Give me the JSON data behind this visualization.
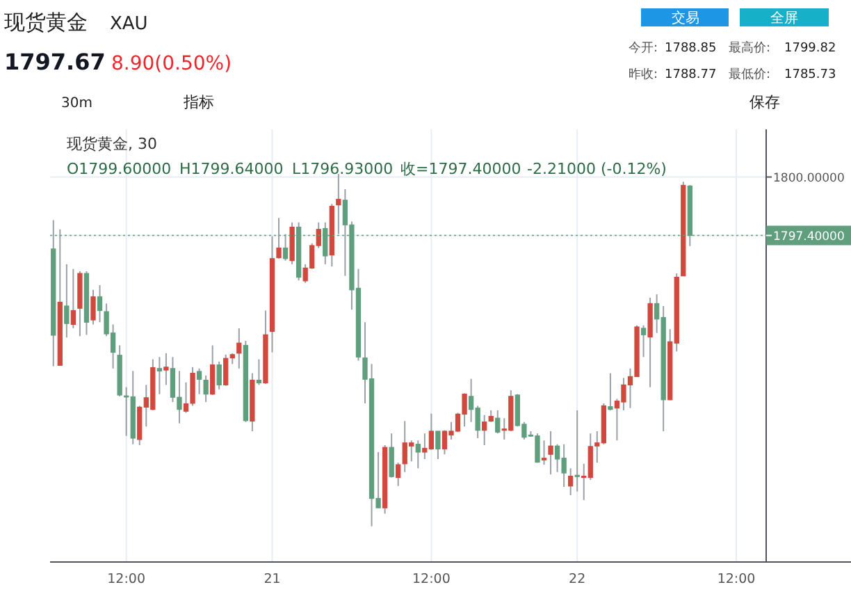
{
  "chart_data": {
    "type": "candlestick",
    "title": "现货黄金",
    "subtitle": "XAU",
    "categories": [
      null,
      null,
      null,
      null,
      null,
      null,
      null,
      null,
      null,
      null,
      null,
      "12:00",
      null,
      null,
      null,
      null,
      null,
      null,
      null,
      null,
      null,
      null,
      null,
      null,
      null,
      null,
      null,
      null,
      null,
      null,
      null,
      null,
      null,
      "21",
      null,
      null,
      null,
      null,
      null,
      null,
      null,
      null,
      null,
      null,
      null,
      null,
      null,
      null,
      null,
      null,
      null,
      null,
      null,
      null,
      null,
      null,
      null,
      "12:00",
      null,
      null,
      null,
      null,
      null,
      null,
      null,
      null,
      null,
      null,
      null,
      null,
      null,
      null,
      null,
      null,
      null,
      null,
      null,
      null,
      null,
      "22",
      null,
      null,
      null,
      null,
      null,
      null,
      null,
      null,
      null,
      null,
      null,
      null,
      null,
      null,
      null,
      null,
      null,
      null,
      null,
      null,
      null,
      null,
      null,
      "12:00",
      null,
      null,
      null,
      null
    ],
    "ohlc": [
      [
        1796.8,
        1798.08,
        1791.58,
        1792.96
      ],
      [
        1791.62,
        1797.67,
        1791.62,
        1794.43
      ],
      [
        1794.26,
        1796.12,
        1792.86,
        1793.48
      ],
      [
        1793.44,
        1795.91,
        1793.27,
        1794.06
      ],
      [
        1794.16,
        1795.81,
        1792.92,
        1795.71
      ],
      [
        1795.71,
        1795.81,
        1792.98,
        1793.54
      ],
      [
        1793.64,
        1794.98,
        1793.44,
        1794.67
      ],
      [
        1794.67,
        1795.19,
        1793.54,
        1794.06
      ],
      [
        1794.01,
        1794.37,
        1792.92,
        1793.02
      ],
      [
        1793.06,
        1793.44,
        1791.48,
        1792.2
      ],
      [
        1792.07,
        1792.51,
        1790.24,
        1790.3
      ],
      [
        1790.26,
        1790.65,
        1788.48,
        1790.22
      ],
      [
        1790.22,
        1791.37,
        1788.11,
        1788.38
      ],
      [
        1788.32,
        1789.82,
        1788.07,
        1789.76
      ],
      [
        1789.76,
        1790.75,
        1788.9,
        1790.18
      ],
      [
        1789.66,
        1791.89,
        1789.62,
        1791.52
      ],
      [
        1791.48,
        1791.99,
        1790.34,
        1791.37
      ],
      [
        1791.41,
        1792.16,
        1790.75,
        1791.54
      ],
      [
        1791.48,
        1791.99,
        1789.99,
        1790.2
      ],
      [
        1790.2,
        1791.37,
        1789.04,
        1789.66
      ],
      [
        1789.58,
        1790.86,
        1789.51,
        1789.91
      ],
      [
        1789.93,
        1791.54,
        1789.82,
        1791.27
      ],
      [
        1791.35,
        1791.48,
        1790.34,
        1791.0
      ],
      [
        1790.96,
        1791.17,
        1789.99,
        1790.34
      ],
      [
        1790.34,
        1792.51,
        1790.3,
        1791.64
      ],
      [
        1791.64,
        1791.79,
        1790.55,
        1790.75
      ],
      [
        1790.75,
        1792.1,
        1790.71,
        1791.93
      ],
      [
        1791.95,
        1792.16,
        1791.68,
        1792.1
      ],
      [
        1792.16,
        1793.27,
        1791.48,
        1792.61
      ],
      [
        1792.51,
        1792.71,
        1789.1,
        1789.16
      ],
      [
        1789.14,
        1791.27,
        1788.69,
        1790.96
      ],
      [
        1790.96,
        1791.89,
        1790.75,
        1790.84
      ],
      [
        1790.84,
        1794.06,
        1790.79,
        1792.98
      ],
      [
        1793.13,
        1797.36,
        1792.2,
        1796.37
      ],
      [
        1796.41,
        1798.18,
        1796.37,
        1796.84
      ],
      [
        1796.84,
        1797.46,
        1796.28,
        1796.37
      ],
      [
        1796.28,
        1797.98,
        1796.12,
        1797.77
      ],
      [
        1797.77,
        1797.98,
        1795.4,
        1795.54
      ],
      [
        1795.38,
        1796.12,
        1795.29,
        1795.95
      ],
      [
        1795.95,
        1797.05,
        1795.91,
        1796.95
      ],
      [
        1796.95,
        1797.98,
        1796.84,
        1797.67
      ],
      [
        1797.71,
        1797.98,
        1796.12,
        1796.49
      ],
      [
        1796.53,
        1798.8,
        1796.02,
        1798.7
      ],
      [
        1798.76,
        1800.14,
        1797.46,
        1799.01
      ],
      [
        1798.97,
        1799.46,
        1795.6,
        1797.87
      ],
      [
        1797.87,
        1798.02,
        1794.1,
        1794.98
      ],
      [
        1795.05,
        1795.91,
        1791.83,
        1791.99
      ],
      [
        1791.95,
        1793.54,
        1789.93,
        1791.0
      ],
      [
        1791.02,
        1791.68,
        1784.46,
        1785.7
      ],
      [
        1785.7,
        1787.76,
        1785.28,
        1785.28
      ],
      [
        1785.28,
        1788.07,
        1785.02,
        1787.97
      ],
      [
        1787.97,
        1788.59,
        1786.63,
        1786.67
      ],
      [
        1786.63,
        1787.29,
        1786.25,
        1787.2
      ],
      [
        1787.24,
        1789.14,
        1786.87,
        1788.17
      ],
      [
        1788.03,
        1788.28,
        1787.35,
        1788.17
      ],
      [
        1788.11,
        1788.28,
        1787.04,
        1787.76
      ],
      [
        1787.76,
        1788.59,
        1787.45,
        1787.93
      ],
      [
        1787.9,
        1789.47,
        1787.86,
        1788.69
      ],
      [
        1788.69,
        1788.69,
        1787.45,
        1787.9
      ],
      [
        1787.9,
        1788.73,
        1787.66,
        1788.69
      ],
      [
        1788.52,
        1789.1,
        1788.32,
        1788.69
      ],
      [
        1788.69,
        1789.51,
        1788.65,
        1789.45
      ],
      [
        1789.45,
        1790.38,
        1788.9,
        1790.34
      ],
      [
        1790.24,
        1791.02,
        1789.1,
        1789.66
      ],
      [
        1789.72,
        1789.82,
        1788.38,
        1788.73
      ],
      [
        1788.73,
        1789.41,
        1788.07,
        1789.1
      ],
      [
        1789.14,
        1789.62,
        1789.1,
        1789.35
      ],
      [
        1789.27,
        1789.62,
        1788.59,
        1788.65
      ],
      [
        1788.73,
        1789.27,
        1788.32,
        1788.79
      ],
      [
        1788.73,
        1790.51,
        1788.69,
        1790.24
      ],
      [
        1790.3,
        1790.34,
        1788.9,
        1788.94
      ],
      [
        1789.0,
        1789.1,
        1788.32,
        1788.42
      ],
      [
        1788.52,
        1788.69,
        1788.44,
        1788.48
      ],
      [
        1788.48,
        1788.59,
        1787.29,
        1787.31
      ],
      [
        1787.41,
        1788.28,
        1787.2,
        1787.49
      ],
      [
        1787.66,
        1788.69,
        1786.77,
        1788.03
      ],
      [
        1788.03,
        1788.11,
        1786.87,
        1787.45
      ],
      [
        1787.49,
        1788.11,
        1786.21,
        1786.83
      ],
      [
        1786.25,
        1787.04,
        1785.84,
        1786.69
      ],
      [
        1786.73,
        1789.62,
        1786.01,
        1786.67
      ],
      [
        1786.63,
        1787.24,
        1785.63,
        1786.69
      ],
      [
        1786.63,
        1788.59,
        1786.52,
        1788.01
      ],
      [
        1788.03,
        1788.69,
        1787.29,
        1788.17
      ],
      [
        1788.17,
        1789.93,
        1788.11,
        1789.82
      ],
      [
        1789.78,
        1791.27,
        1789.62,
        1789.66
      ],
      [
        1789.72,
        1790.13,
        1788.28,
        1790.03
      ],
      [
        1789.99,
        1791.06,
        1789.62,
        1790.75
      ],
      [
        1790.75,
        1791.48,
        1789.72,
        1791.12
      ],
      [
        1791.12,
        1793.4,
        1791.12,
        1793.33
      ],
      [
        1793.27,
        1793.4,
        1791.99,
        1792.98
      ],
      [
        1792.88,
        1794.63,
        1790.65,
        1794.37
      ],
      [
        1794.37,
        1794.78,
        1793.06,
        1793.68
      ],
      [
        1793.75,
        1794.26,
        1788.69,
        1790.09
      ],
      [
        1790.09,
        1793.23,
        1790.07,
        1792.67
      ],
      [
        1792.61,
        1795.71,
        1792.24,
        1795.54
      ],
      [
        1795.6,
        1799.79,
        1795.6,
        1799.63
      ],
      [
        1799.6,
        1799.64,
        1796.93,
        1797.4
      ],
      null,
      null,
      null,
      null,
      null,
      null,
      null,
      null,
      null,
      null,
      null
    ],
    "colors": [
      "#5f9f7d",
      "#d1493e",
      "#5f9f7d",
      "#d1493e",
      "#d1493e",
      "#5f9f7d",
      "#d1493e",
      "#5f9f7d",
      "#5f9f7d",
      "#5f9f7d",
      "#5f9f7d",
      "#5f9f7d",
      "#5f9f7d",
      "#d1493e",
      "#d1493e",
      "#d1493e",
      "#5f9f7d",
      "#d1493e",
      "#5f9f7d",
      "#5f9f7d",
      "#d1493e",
      "#d1493e",
      "#5f9f7d",
      "#5f9f7d",
      "#d1493e",
      "#5f9f7d",
      "#d1493e",
      "#d1493e",
      "#d1493e",
      "#5f9f7d",
      "#d1493e",
      "#5f9f7d",
      "#d1493e",
      "#d1493e",
      "#d1493e",
      "#5f9f7d",
      "#d1493e",
      "#5f9f7d",
      "#d1493e",
      "#d1493e",
      "#d1493e",
      "#5f9f7d",
      "#d1493e",
      "#d1493e",
      "#5f9f7d",
      "#5f9f7d",
      "#5f9f7d",
      "#5f9f7d",
      "#5f9f7d",
      "#5f9f7d",
      "#d1493e",
      "#5f9f7d",
      "#d1493e",
      "#d1493e",
      "#d1493e",
      "#5f9f7d",
      "#d1493e",
      "#d1493e",
      "#5f9f7d",
      "#d1493e",
      "#d1493e",
      "#d1493e",
      "#d1493e",
      "#5f9f7d",
      "#5f9f7d",
      "#d1493e",
      "#d1493e",
      "#5f9f7d",
      "#d1493e",
      "#d1493e",
      "#5f9f7d",
      "#5f9f7d",
      "#5f9f7d",
      "#5f9f7d",
      "#d1493e",
      "#d1493e",
      "#5f9f7d",
      "#5f9f7d",
      "#d1493e",
      "#5f9f7d",
      "#d1493e",
      "#d1493e",
      "#d1493e",
      "#d1493e",
      "#5f9f7d",
      "#d1493e",
      "#d1493e",
      "#d1493e",
      "#d1493e",
      "#5f9f7d",
      "#d1493e",
      "#5f9f7d",
      "#5f9f7d",
      "#d1493e",
      "#d1493e",
      "#d1493e",
      "#5f9f7d",
      null,
      null,
      null,
      null,
      null,
      null,
      null,
      null,
      null,
      null,
      null
    ],
    "ylim": [
      1782.87,
      1802.12
    ],
    "yticks": [
      {
        "value": 1800,
        "label": "1800.00000"
      },
      {
        "value": 1797.4,
        "label": "1797.40000"
      }
    ],
    "grid": true,
    "ref_lines": [
      {
        "axis": "y",
        "value": 1797.4,
        "color": "#5f9f7d",
        "line_style": "dotted"
      }
    ],
    "annotations": [
      "1797.67",
      "8.90(0.50%)",
      "交易",
      "全屏",
      "今开:",
      "1788.85",
      "最高价:",
      "1799.82",
      "昨收:",
      "1788.77",
      "最低价:",
      "1785.73",
      "30m",
      "指标",
      "保存",
      "现货黄金, 30",
      "O1799.60000",
      "H1799.64000",
      "L1796.93000",
      "收=1797.40000",
      "-2.21000 (-0.12%)"
    ]
  }
}
